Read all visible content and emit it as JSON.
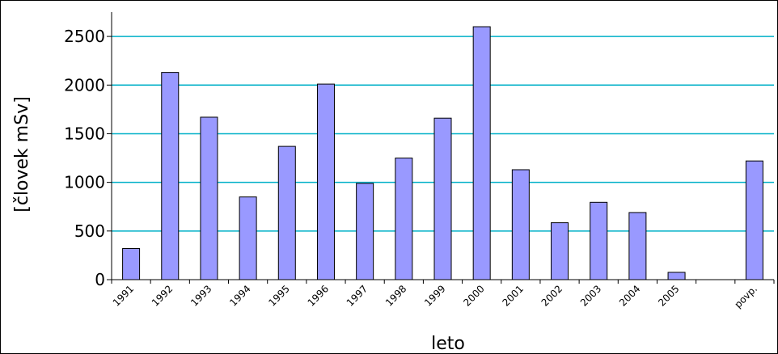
{
  "chart_data": {
    "type": "bar",
    "title": "",
    "xlabel": "leto",
    "ylabel": "[človek mSv]",
    "categories": [
      "1991",
      "1992",
      "1993",
      "1994",
      "1995",
      "1996",
      "1997",
      "1998",
      "1999",
      "2000",
      "2001",
      "2002",
      "2003",
      "2004",
      "2005",
      "",
      "povp."
    ],
    "values": [
      320,
      2130,
      1670,
      850,
      1370,
      2010,
      990,
      1250,
      1660,
      2600,
      1130,
      585,
      795,
      690,
      75,
      null,
      1220
    ],
    "ylim": [
      0,
      2750
    ],
    "yticks": [
      0,
      500,
      1000,
      1500,
      2000,
      2500
    ],
    "grid": true,
    "legend": "none",
    "colors": {
      "bar_fill": "#9999ff",
      "bar_stroke": "#000000",
      "gridline": "#00b0c8",
      "frame": "#000000"
    }
  }
}
